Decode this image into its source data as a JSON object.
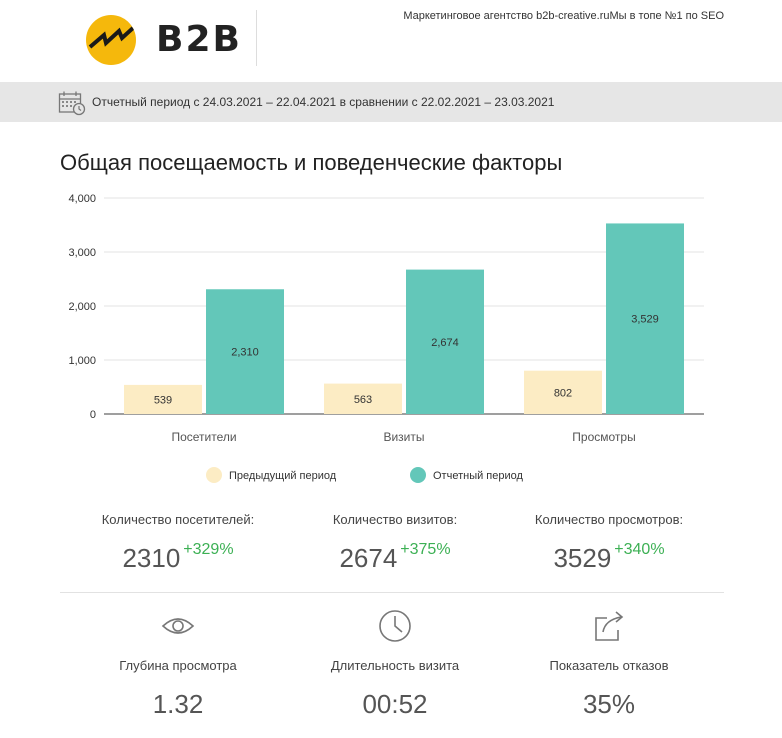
{
  "header": {
    "logo_text": "B2B",
    "tagline": "Маркетинговое агентство b2b-creative.ruМы в топе №1 по SEO"
  },
  "period": {
    "text": "Отчетный период с 24.03.2021 – 22.04.2021 в сравнении с 22.02.2021 – 23.03.2021"
  },
  "section": {
    "title": "Общая посещаемость и поведенческие факторы"
  },
  "colors": {
    "previous": "#fcecc4",
    "current": "#63c7b9",
    "positive": "#3cb054",
    "logo": "#f5b80c"
  },
  "chart_data": {
    "type": "bar",
    "categories": [
      "Посетители",
      "Визиты",
      "Просмотры"
    ],
    "series": [
      {
        "name": "Предыдущий период",
        "values": [
          539,
          563,
          802
        ]
      },
      {
        "name": "Отчетный период",
        "values": [
          2310,
          2674,
          3529
        ]
      }
    ],
    "value_labels": [
      [
        "539",
        "563",
        "802"
      ],
      [
        "2,310",
        "2,674",
        "3,529"
      ]
    ],
    "yticks": [
      0,
      1000,
      2000,
      3000,
      4000
    ],
    "ytick_labels": [
      "0",
      "1,000",
      "2,000",
      "3,000",
      "4,000"
    ],
    "ylim": [
      0,
      4000
    ],
    "grid": true,
    "legend_position": "bottom"
  },
  "stats": [
    {
      "label": "Количество посетителей:",
      "value": "2310",
      "change": "+329%"
    },
    {
      "label": "Количество визитов:",
      "value": "2674",
      "change": "+375%"
    },
    {
      "label": "Количество просмотров:",
      "value": "3529",
      "change": "+340%"
    }
  ],
  "metrics": [
    {
      "icon": "eye-icon",
      "label": "Глубина просмотра",
      "value": "1.32"
    },
    {
      "icon": "clock-icon",
      "label": "Длительность визита",
      "value": "00:52"
    },
    {
      "icon": "share-icon",
      "label": "Показатель отказов",
      "value": "35%"
    }
  ]
}
